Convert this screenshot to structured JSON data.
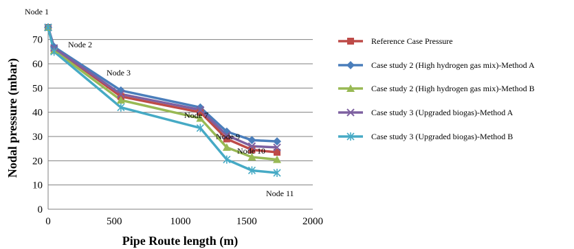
{
  "chart_data": {
    "type": "line",
    "title": "",
    "xlabel": "Pipe Route length (m)",
    "ylabel": "Nodal pressure (mbar)",
    "xlim": [
      0,
      2000
    ],
    "ylim": [
      0,
      75
    ],
    "xticks": [
      0,
      500,
      1000,
      1500,
      2000
    ],
    "yticks": [
      0,
      10,
      20,
      30,
      40,
      50,
      60,
      70
    ],
    "grid": "horizontal",
    "legend_position": "right",
    "x": [
      0,
      45,
      550,
      1150,
      1350,
      1540,
      1730
    ],
    "series": [
      {
        "name": "Reference Case Pressure",
        "color": "#be4b48",
        "marker": "square",
        "values": [
          75,
          66.5,
          46.5,
          40,
          29,
          24.5,
          23.5
        ]
      },
      {
        "name": "Case study 2 (High hydrogen gas mix)-Method A",
        "color": "#4a7ebb",
        "marker": "diamond",
        "values": [
          75,
          67,
          49,
          42,
          32,
          28.5,
          28
        ]
      },
      {
        "name": "Case study 2 (High hydrogen gas mix)-Method B",
        "color": "#98b954",
        "marker": "triangle",
        "values": [
          75,
          65.5,
          45,
          37.5,
          25.5,
          21.5,
          20.5
        ]
      },
      {
        "name": "Case study 3 (Upgraded biogas)-Method A",
        "color": "#7d60a0",
        "marker": "x",
        "values": [
          75,
          66.5,
          47.5,
          41,
          30.5,
          26,
          25.5
        ]
      },
      {
        "name": "Case study 3 (Upgraded biogas)-Method B",
        "color": "#46aac5",
        "marker": "star",
        "values": [
          75,
          65,
          42,
          33.5,
          20.5,
          16,
          15
        ]
      }
    ],
    "annotations": [
      {
        "text": "Node 1"
      },
      {
        "text": "Node 2"
      },
      {
        "text": "Node 3"
      },
      {
        "text": "Node 7"
      },
      {
        "text": "Node 9"
      },
      {
        "text": "Node 10"
      },
      {
        "text": "Node 11"
      }
    ]
  }
}
